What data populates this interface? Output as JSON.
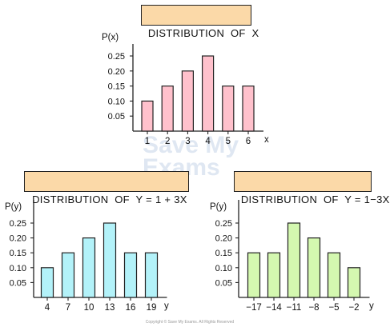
{
  "chart_data": [
    {
      "type": "bar",
      "title": "DISTRIBUTION  OF  X",
      "ylabel": "P(x)",
      "xlabel": "x",
      "categories": [
        "1",
        "2",
        "3",
        "4",
        "5",
        "6"
      ],
      "values": [
        0.1,
        0.15,
        0.2,
        0.25,
        0.15,
        0.15
      ],
      "yticks": [
        "0.05",
        "0.10",
        "0.15",
        "0.20",
        "0.25"
      ],
      "ylim": [
        0,
        0.3
      ],
      "color": "#ffc1cc",
      "grid": false
    },
    {
      "type": "bar",
      "title": "DISTRIBUTION  OF  Y = 1 + 3X",
      "ylabel": "P(y)",
      "xlabel": "y",
      "categories": [
        "4",
        "7",
        "10",
        "13",
        "16",
        "19"
      ],
      "values": [
        0.1,
        0.15,
        0.2,
        0.25,
        0.15,
        0.15
      ],
      "yticks": [
        "0.05",
        "0.10",
        "0.15",
        "0.20",
        "0.25"
      ],
      "ylim": [
        0,
        0.3
      ],
      "color": "#b3f2f9",
      "grid": false
    },
    {
      "type": "bar",
      "title": "DISTRIBUTION  OF  Y = 1−3X",
      "ylabel": "P(y)",
      "xlabel": "y",
      "categories": [
        "−17",
        "−14",
        "−11",
        "−8",
        "−5",
        "−2"
      ],
      "values": [
        0.15,
        0.15,
        0.25,
        0.2,
        0.15,
        0.1
      ],
      "yticks": [
        "0.05",
        "0.10",
        "0.15",
        "0.20",
        "0.25"
      ],
      "ylim": [
        0,
        0.3
      ],
      "color": "#d4f8b0",
      "grid": false
    }
  ],
  "watermark": "Save My Exams",
  "footer": "Copyright © Save My Exams. All Rights Reserved"
}
